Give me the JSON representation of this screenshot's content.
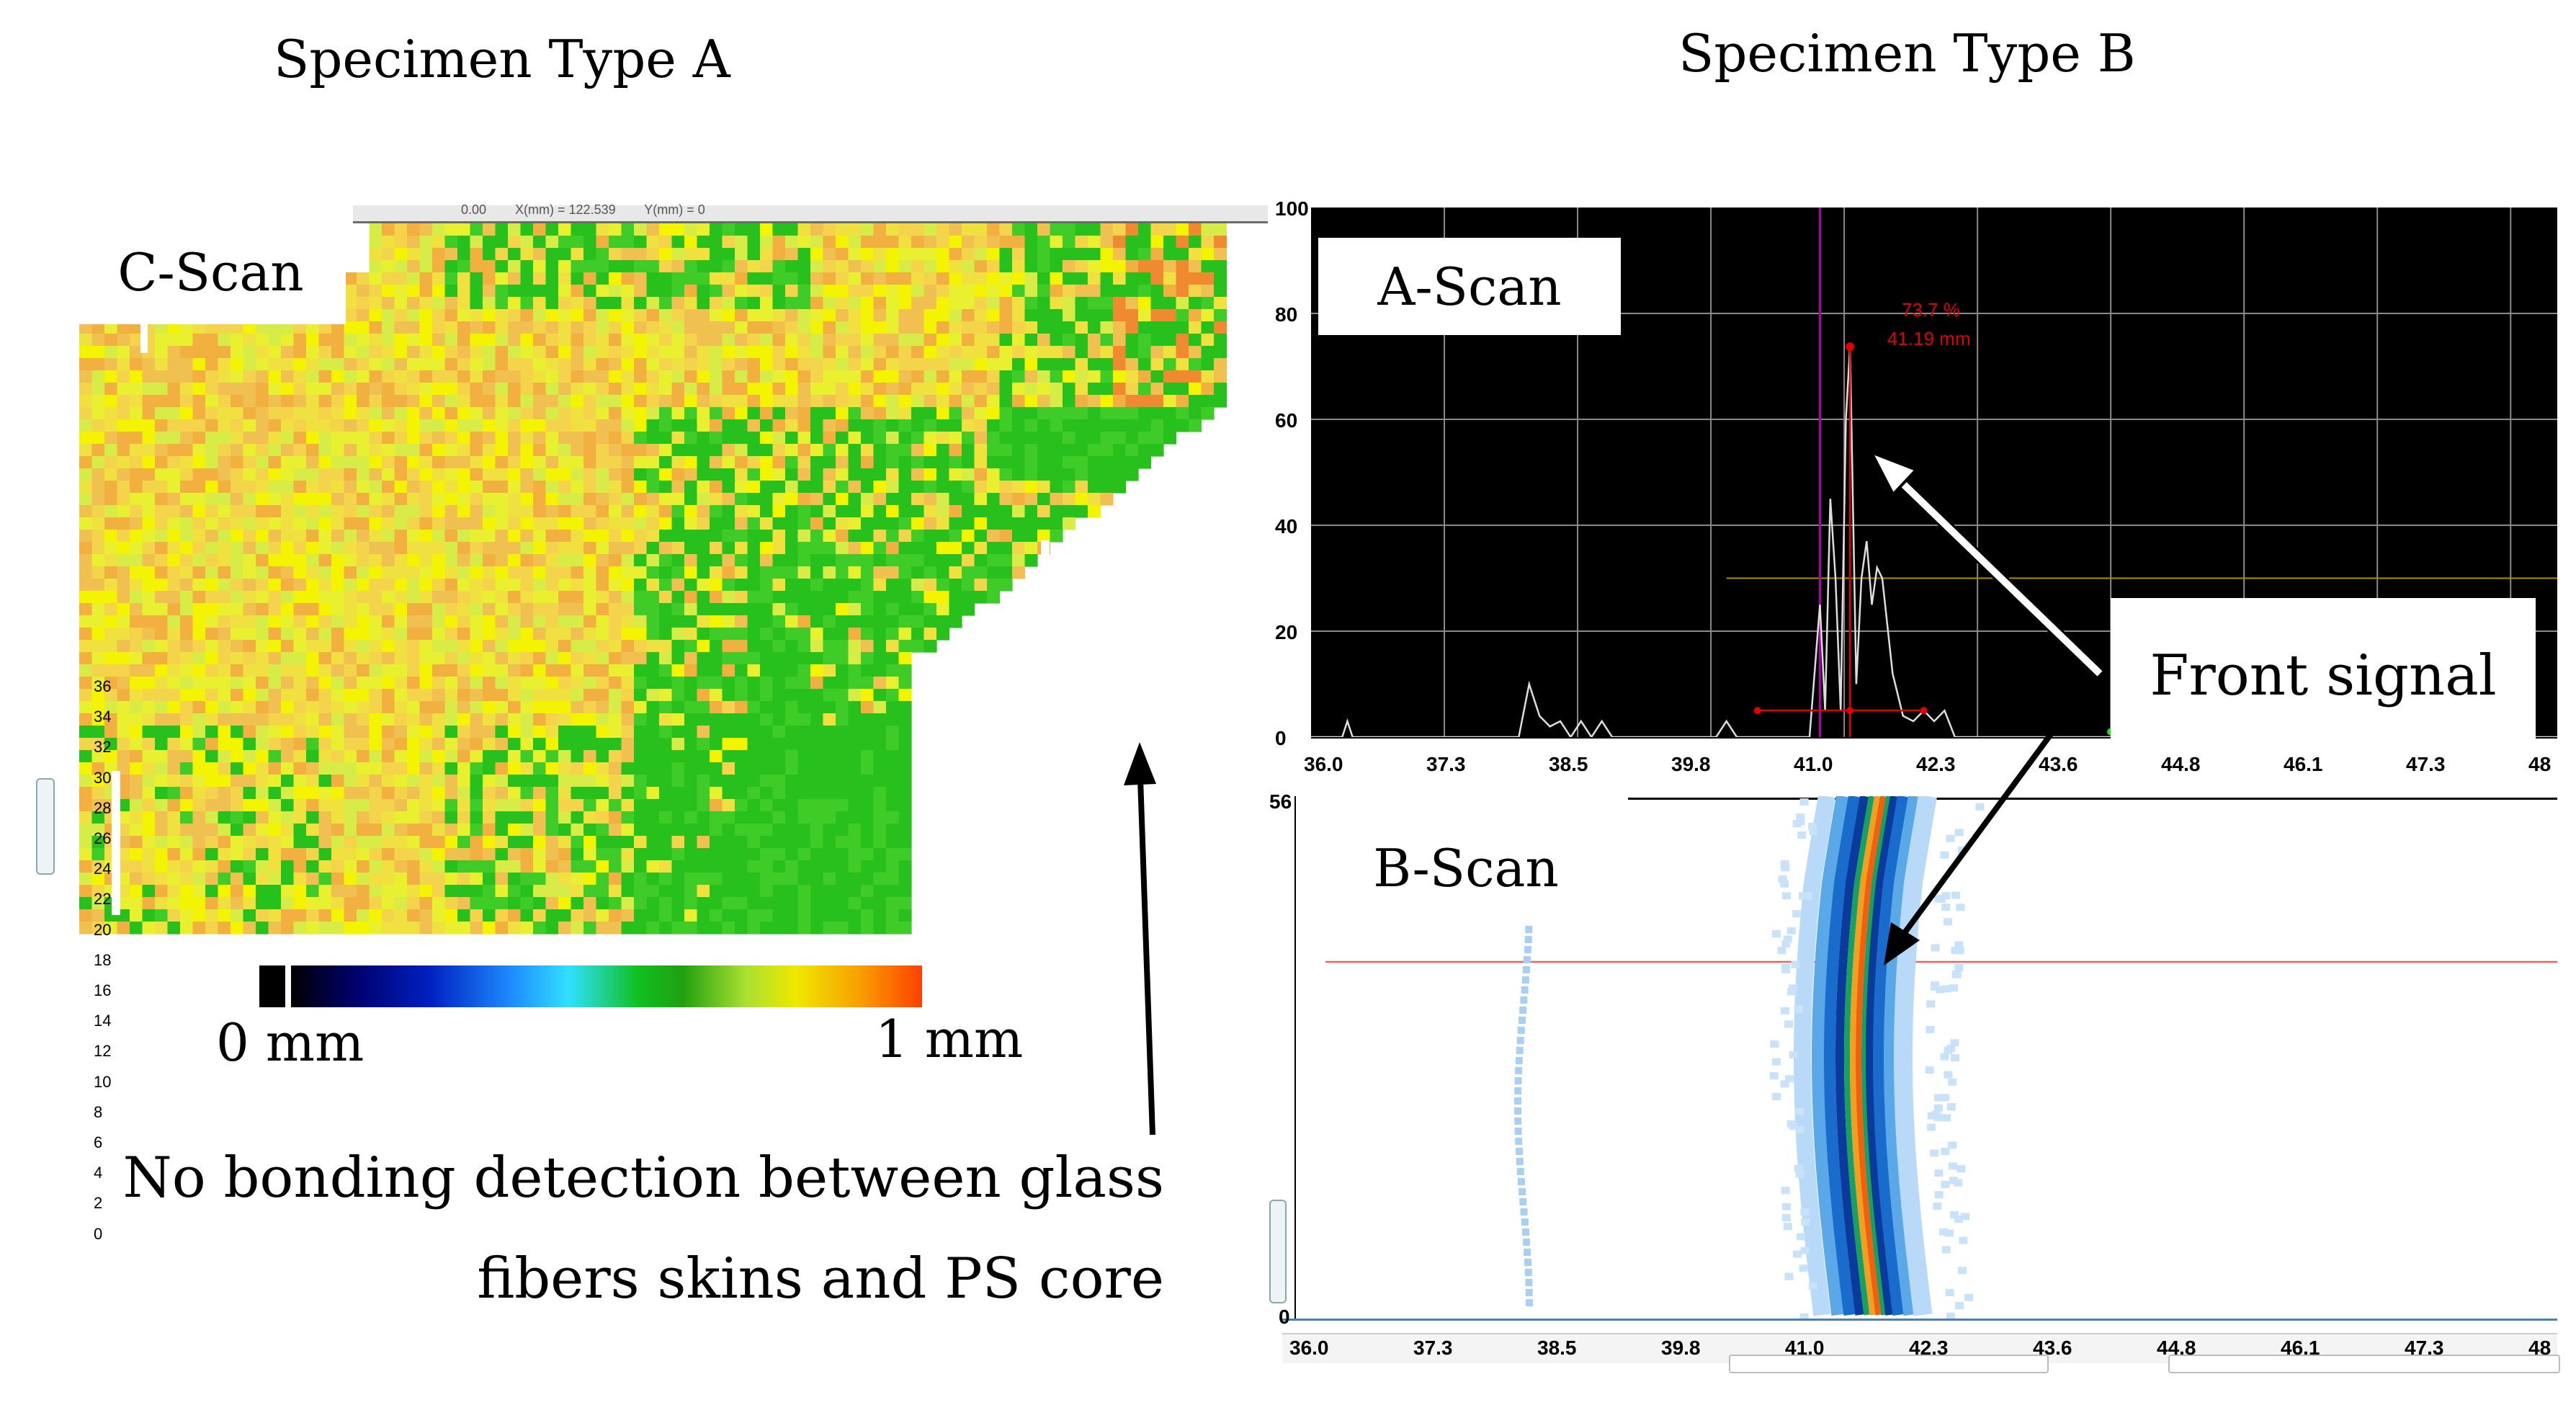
{
  "titles": {
    "left": "Specimen Type A",
    "right": "Specimen Type B"
  },
  "cscan": {
    "label": "C-Scan",
    "header_text": "0.00        X(mm) = 122.539        Y(mm) = 0",
    "y_ticks": [
      "36",
      "34",
      "32",
      "30",
      "28",
      "26",
      "24",
      "22",
      "20",
      "18",
      "16",
      "14",
      "12",
      "10",
      "8",
      "6",
      "4",
      "2",
      "0"
    ]
  },
  "colorbar": {
    "min_label": "0 mm",
    "max_label": "1 mm"
  },
  "ascan": {
    "label": "A-Scan",
    "y_ticks": [
      "100",
      "80",
      "60",
      "40",
      "20",
      "0"
    ],
    "peak_percent": "73.7 %",
    "peak_depth": "41.19 mm",
    "x_ticks": [
      "36.0",
      "37.3",
      "38.5",
      "39.8",
      "41.0",
      "42.3",
      "43.6",
      "44.8",
      "46.1",
      "47.3",
      "48"
    ]
  },
  "bscan": {
    "label": "B-Scan",
    "y_ticks": [
      "56",
      "0"
    ],
    "x_ticks": [
      "36.0",
      "37.3",
      "38.5",
      "39.8",
      "41.0",
      "42.3",
      "43.6",
      "44.8",
      "46.1",
      "47.3",
      "48"
    ]
  },
  "annotations": {
    "front_signal": "Front signal",
    "no_bonding_line1": "No bonding detection between glass",
    "no_bonding_line2": "fibers skins and PS core"
  },
  "colors": {
    "grid": "#8a8a8a",
    "magenta_gate": "#b000b0",
    "red_marker": "#e00000",
    "threshold": "#b08a00",
    "bscan_line": "#f06060"
  }
}
